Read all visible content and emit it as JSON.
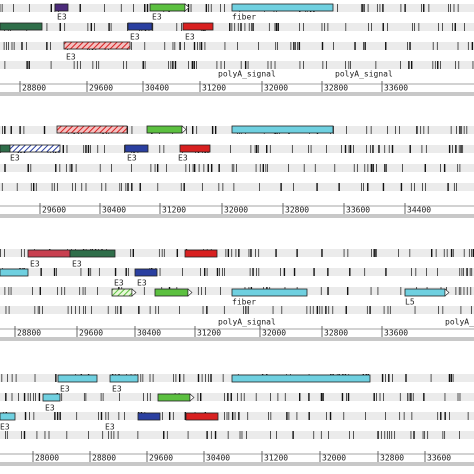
{
  "panels": [
    {
      "labels": [
        "E3",
        "E3",
        "fiber",
        "E3",
        "E3",
        "E3",
        "polyA_signal",
        "polyA_signal"
      ],
      "ruler": [
        28800,
        29600,
        30400,
        31200,
        32000,
        32800,
        33600
      ]
    },
    {
      "labels": [
        "E3",
        "E3",
        "E3"
      ],
      "ruler": [
        29600,
        30400,
        31200,
        32000,
        32800,
        33600,
        34400
      ]
    },
    {
      "labels": [
        "E3",
        "E3",
        "E3",
        "E3",
        "fiber",
        "L5",
        "polyA_signal",
        "polyA_signal"
      ],
      "ruler": [
        28800,
        29600,
        30400,
        31200,
        32000,
        32800,
        33600
      ]
    },
    {
      "labels": [
        "E3",
        "E3",
        "E3",
        "E3",
        "E3"
      ],
      "ruler": [
        28000,
        28800,
        29600,
        30400,
        31200,
        32000,
        32800,
        33600
      ]
    }
  ]
}
